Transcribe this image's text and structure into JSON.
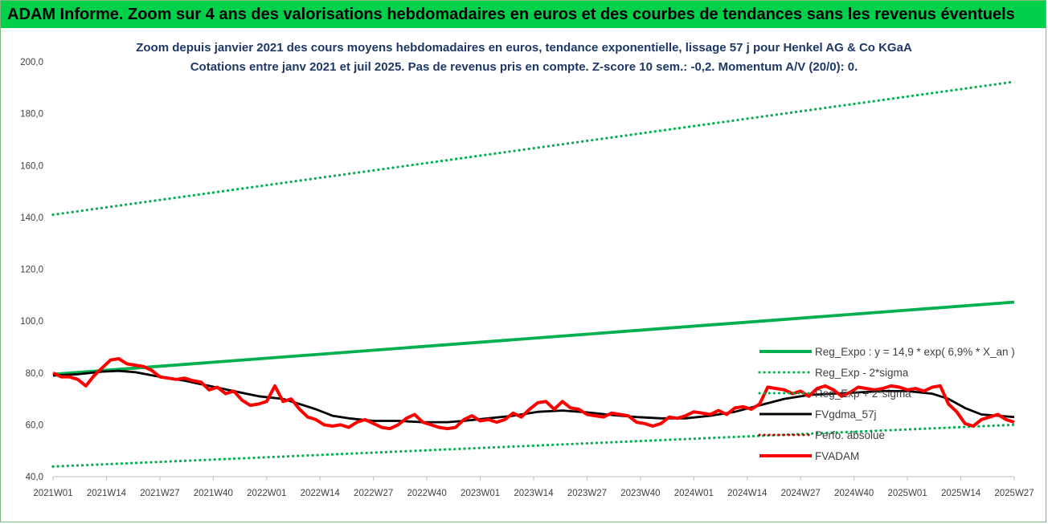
{
  "header": {
    "banner_title": "ADAM Informe. Zoom sur 4 ans des valorisations hebdomadaires en euros et des courbes de tendances sans les revenus éventuels"
  },
  "chart_data": {
    "type": "line",
    "title": "Zoom depuis janvier 2021 des cours moyens hebdomadaires en euros, tendance exponentielle, lissage 57 j pour Henkel AG & Co KGaA",
    "subtitle": "Cotations entre janv 2021 et juil 2025. Pas de revenus pris en compte. Z-score 10 sem.: -0,2. Momentum A/V (20/0): 0.",
    "xlabel": "",
    "ylabel": "",
    "ylim": [
      40,
      200
    ],
    "yticks": [
      "40,0",
      "60,0",
      "80,0",
      "100,0",
      "120,0",
      "140,0",
      "160,0",
      "180,0",
      "200,0"
    ],
    "xlim": [
      0,
      234
    ],
    "xticks": [
      {
        "i": 0,
        "label": "2021W01"
      },
      {
        "i": 13,
        "label": "2021W14"
      },
      {
        "i": 26,
        "label": "2021W27"
      },
      {
        "i": 39,
        "label": "2021W40"
      },
      {
        "i": 52,
        "label": "2022W01"
      },
      {
        "i": 65,
        "label": "2022W14"
      },
      {
        "i": 78,
        "label": "2022W27"
      },
      {
        "i": 91,
        "label": "2022W40"
      },
      {
        "i": 104,
        "label": "2023W01"
      },
      {
        "i": 117,
        "label": "2023W14"
      },
      {
        "i": 130,
        "label": "2023W27"
      },
      {
        "i": 143,
        "label": "2023W40"
      },
      {
        "i": 156,
        "label": "2024W01"
      },
      {
        "i": 169,
        "label": "2024W14"
      },
      {
        "i": 182,
        "label": "2024W27"
      },
      {
        "i": 195,
        "label": "2024W40"
      },
      {
        "i": 208,
        "label": "2025W01"
      },
      {
        "i": 221,
        "label": "2025W14"
      },
      {
        "i": 234,
        "label": "2025W27"
      }
    ],
    "grid": false,
    "legend_position": "right",
    "series": [
      {
        "name": "Reg_Expo : y = 14,9 * exp( 6,9% *  X_an )",
        "style": "solid",
        "color": "#00b050",
        "points": [
          [
            0,
            79.5
          ],
          [
            234,
            107.3
          ]
        ]
      },
      {
        "name": "Reg_Exp - 2*sigma",
        "style": "dotted",
        "color": "#00b050",
        "points": [
          [
            0,
            43.9
          ],
          [
            234,
            60.0
          ]
        ]
      },
      {
        "name": "Reg_Exp + 2*sigma",
        "style": "dotted",
        "color": "#00b050",
        "points": [
          [
            0,
            141.0
          ],
          [
            234,
            192.3
          ]
        ]
      },
      {
        "name": "FVgdma_57j",
        "style": "solid",
        "color": "#000000",
        "points": [
          [
            0,
            79
          ],
          [
            6,
            79.5
          ],
          [
            12,
            80.5
          ],
          [
            16,
            80.8
          ],
          [
            20,
            80.3
          ],
          [
            26,
            78.5
          ],
          [
            32,
            77
          ],
          [
            38,
            75
          ],
          [
            44,
            73
          ],
          [
            50,
            71
          ],
          [
            56,
            70
          ],
          [
            60,
            68
          ],
          [
            64,
            66
          ],
          [
            68,
            63.5
          ],
          [
            72,
            62.5
          ],
          [
            78,
            61.5
          ],
          [
            84,
            61.5
          ],
          [
            90,
            61
          ],
          [
            96,
            61
          ],
          [
            100,
            61.5
          ],
          [
            106,
            62.5
          ],
          [
            112,
            63.5
          ],
          [
            118,
            65
          ],
          [
            124,
            65.5
          ],
          [
            130,
            64.8
          ],
          [
            136,
            63.8
          ],
          [
            142,
            63
          ],
          [
            148,
            62.5
          ],
          [
            154,
            62.5
          ],
          [
            160,
            63.5
          ],
          [
            166,
            65
          ],
          [
            172,
            67.5
          ],
          [
            178,
            70
          ],
          [
            184,
            71.5
          ],
          [
            190,
            72
          ],
          [
            196,
            72.5
          ],
          [
            202,
            73
          ],
          [
            208,
            73
          ],
          [
            214,
            72
          ],
          [
            218,
            70
          ],
          [
            222,
            66.5
          ],
          [
            226,
            64
          ],
          [
            230,
            63.5
          ],
          [
            234,
            63
          ]
        ]
      },
      {
        "name": "Perfo. absolue",
        "style": "dotted",
        "color": "#c00000",
        "points": []
      },
      {
        "name": "FVADAM",
        "style": "solid",
        "color": "#ff0000",
        "points": [
          [
            0,
            80
          ],
          [
            2,
            78.5
          ],
          [
            4,
            78.5
          ],
          [
            6,
            77.5
          ],
          [
            8,
            75
          ],
          [
            10,
            79
          ],
          [
            12,
            82
          ],
          [
            14,
            85
          ],
          [
            16,
            85.5
          ],
          [
            18,
            83.5
          ],
          [
            20,
            83
          ],
          [
            22,
            82.5
          ],
          [
            24,
            81
          ],
          [
            26,
            78.5
          ],
          [
            28,
            78
          ],
          [
            30,
            77.5
          ],
          [
            32,
            78
          ],
          [
            34,
            77
          ],
          [
            36,
            76.5
          ],
          [
            38,
            73.5
          ],
          [
            40,
            74.5
          ],
          [
            42,
            72
          ],
          [
            44,
            73
          ],
          [
            46,
            69.5
          ],
          [
            48,
            67.5
          ],
          [
            50,
            68
          ],
          [
            52,
            69
          ],
          [
            54,
            75
          ],
          [
            56,
            69
          ],
          [
            58,
            70
          ],
          [
            60,
            66
          ],
          [
            62,
            63
          ],
          [
            64,
            62
          ],
          [
            66,
            60
          ],
          [
            68,
            59.5
          ],
          [
            70,
            60
          ],
          [
            72,
            59
          ],
          [
            74,
            61
          ],
          [
            76,
            62
          ],
          [
            78,
            60.5
          ],
          [
            80,
            59
          ],
          [
            82,
            58.5
          ],
          [
            84,
            60
          ],
          [
            86,
            62.5
          ],
          [
            88,
            64
          ],
          [
            90,
            61
          ],
          [
            92,
            60
          ],
          [
            94,
            59
          ],
          [
            96,
            58.5
          ],
          [
            98,
            59
          ],
          [
            100,
            62
          ],
          [
            102,
            63.5
          ],
          [
            104,
            61.5
          ],
          [
            106,
            62
          ],
          [
            108,
            61
          ],
          [
            110,
            62
          ],
          [
            112,
            64.5
          ],
          [
            114,
            63
          ],
          [
            116,
            66
          ],
          [
            118,
            68.5
          ],
          [
            120,
            69
          ],
          [
            122,
            66
          ],
          [
            124,
            69
          ],
          [
            126,
            66.5
          ],
          [
            128,
            66
          ],
          [
            130,
            64
          ],
          [
            132,
            63.5
          ],
          [
            134,
            63
          ],
          [
            136,
            64.5
          ],
          [
            138,
            64
          ],
          [
            140,
            63.5
          ],
          [
            142,
            61
          ],
          [
            144,
            60.5
          ],
          [
            146,
            59.5
          ],
          [
            148,
            60.5
          ],
          [
            150,
            63
          ],
          [
            152,
            62.5
          ],
          [
            154,
            63.5
          ],
          [
            156,
            65
          ],
          [
            158,
            64.5
          ],
          [
            160,
            64
          ],
          [
            162,
            65.5
          ],
          [
            164,
            64
          ],
          [
            166,
            66.5
          ],
          [
            168,
            67
          ],
          [
            170,
            66
          ],
          [
            172,
            68
          ],
          [
            174,
            74.5
          ],
          [
            176,
            74
          ],
          [
            178,
            73.5
          ],
          [
            180,
            72
          ],
          [
            182,
            73
          ],
          [
            184,
            71
          ],
          [
            186,
            74
          ],
          [
            188,
            75
          ],
          [
            190,
            73.5
          ],
          [
            192,
            71
          ],
          [
            194,
            72.5
          ],
          [
            196,
            74.5
          ],
          [
            198,
            74
          ],
          [
            200,
            73.5
          ],
          [
            202,
            74
          ],
          [
            204,
            75
          ],
          [
            206,
            74.5
          ],
          [
            208,
            73.5
          ],
          [
            210,
            74
          ],
          [
            212,
            73
          ],
          [
            214,
            74.5
          ],
          [
            216,
            75
          ],
          [
            218,
            68
          ],
          [
            220,
            65
          ],
          [
            222,
            60.5
          ],
          [
            224,
            59.5
          ],
          [
            226,
            62
          ],
          [
            228,
            63
          ],
          [
            230,
            64
          ],
          [
            232,
            62
          ],
          [
            234,
            61
          ]
        ]
      }
    ]
  }
}
